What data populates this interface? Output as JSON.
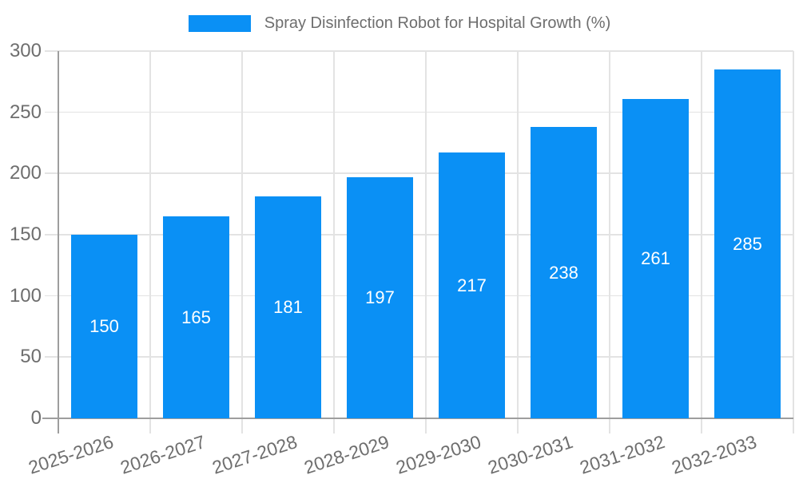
{
  "legend": {
    "label": "Spray Disinfection Robot for Hospital Growth (%)"
  },
  "colors": {
    "bar": "#0A90F5",
    "bar_label": "#FFFFFF",
    "axis_text": "#6E6E6E",
    "legend_text": "#6E6E6E",
    "grid": "#E3E3E3",
    "axis_line": "#9E9E9E",
    "background": "#FFFFFF"
  },
  "chart_data": {
    "type": "bar",
    "title": "Spray Disinfection Robot for Hospital Growth (%)",
    "categories": [
      "2025-2026",
      "2026-2027",
      "2027-2028",
      "2028-2029",
      "2029-2030",
      "2030-2031",
      "2031-2032",
      "2032-2033"
    ],
    "values": [
      150,
      165,
      181,
      197,
      217,
      238,
      261,
      285
    ],
    "series_name": "Spray Disinfection Robot for Hospital Growth (%)",
    "xlabel": "",
    "ylabel": "",
    "ylim": [
      0,
      300
    ],
    "yticks": [
      0,
      50,
      100,
      150,
      200,
      250,
      300
    ],
    "grid": true,
    "legend_position": "top",
    "bar_value_labels": true,
    "x_tick_rotation_deg": -18
  }
}
